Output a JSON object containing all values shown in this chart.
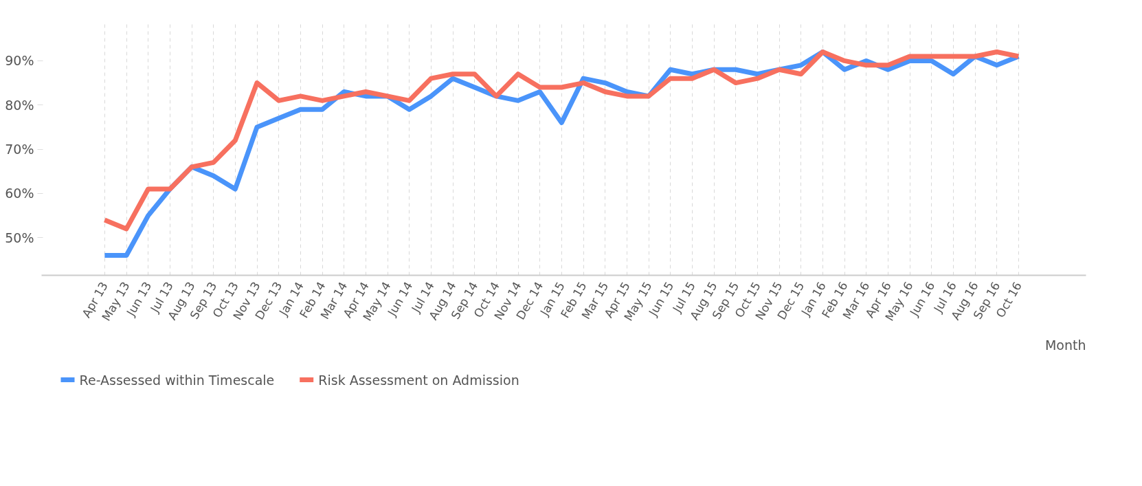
{
  "chart_data": {
    "type": "line",
    "xlabel": "Month",
    "categories": [
      "Apr 13",
      "May 13",
      "Jun 13",
      "Jul 13",
      "Aug 13",
      "Sep 13",
      "Oct 13",
      "Nov 13",
      "Dec 13",
      "Jan 14",
      "Feb 14",
      "Mar 14",
      "Apr 14",
      "May 14",
      "Jun 14",
      "Jul 14",
      "Aug 14",
      "Sep 14",
      "Oct 14",
      "Nov 14",
      "Dec 14",
      "Jan 15",
      "Feb 15",
      "Mar 15",
      "Apr 15",
      "May 15",
      "Jun 15",
      "Jul 15",
      "Aug 15",
      "Sep 15",
      "Oct 15",
      "Nov 15",
      "Dec 15",
      "Jan 16",
      "Feb 16",
      "Mar 16",
      "Apr 16",
      "May 16",
      "Jun 16",
      "Jul 16",
      "Aug 16",
      "Sep 16",
      "Oct 16"
    ],
    "series": [
      {
        "name": "Re-Assessed within Timescale",
        "color": "#4a94fa",
        "values": [
          46,
          46,
          55,
          61,
          66,
          64,
          61,
          75,
          77,
          79,
          79,
          83,
          82,
          82,
          79,
          82,
          86,
          84,
          82,
          81,
          83,
          76,
          86,
          85,
          83,
          82,
          88,
          87,
          88,
          88,
          87,
          88,
          89,
          92,
          88,
          90,
          88,
          90,
          90,
          87,
          91,
          89,
          91
        ]
      },
      {
        "name": "Risk Assessment on Admission",
        "color": "#f7705f",
        "values": [
          54,
          52,
          61,
          61,
          66,
          67,
          72,
          85,
          81,
          82,
          81,
          82,
          83,
          82,
          81,
          86,
          87,
          87,
          82,
          87,
          84,
          84,
          85,
          83,
          82,
          82,
          86,
          86,
          88,
          85,
          86,
          88,
          87,
          92,
          90,
          89,
          89,
          91,
          91,
          91,
          91,
          92,
          91
        ]
      }
    ],
    "ylim": [
      41.5,
      99
    ],
    "yticks": [
      {
        "value": 50,
        "label": "50%"
      },
      {
        "value": 60,
        "label": "60%"
      },
      {
        "value": 70,
        "label": "70%"
      },
      {
        "value": 80,
        "label": "80%"
      },
      {
        "value": 90,
        "label": "90%"
      }
    ],
    "grid": "x",
    "legend": "bottom left",
    "line_style": "solid"
  }
}
